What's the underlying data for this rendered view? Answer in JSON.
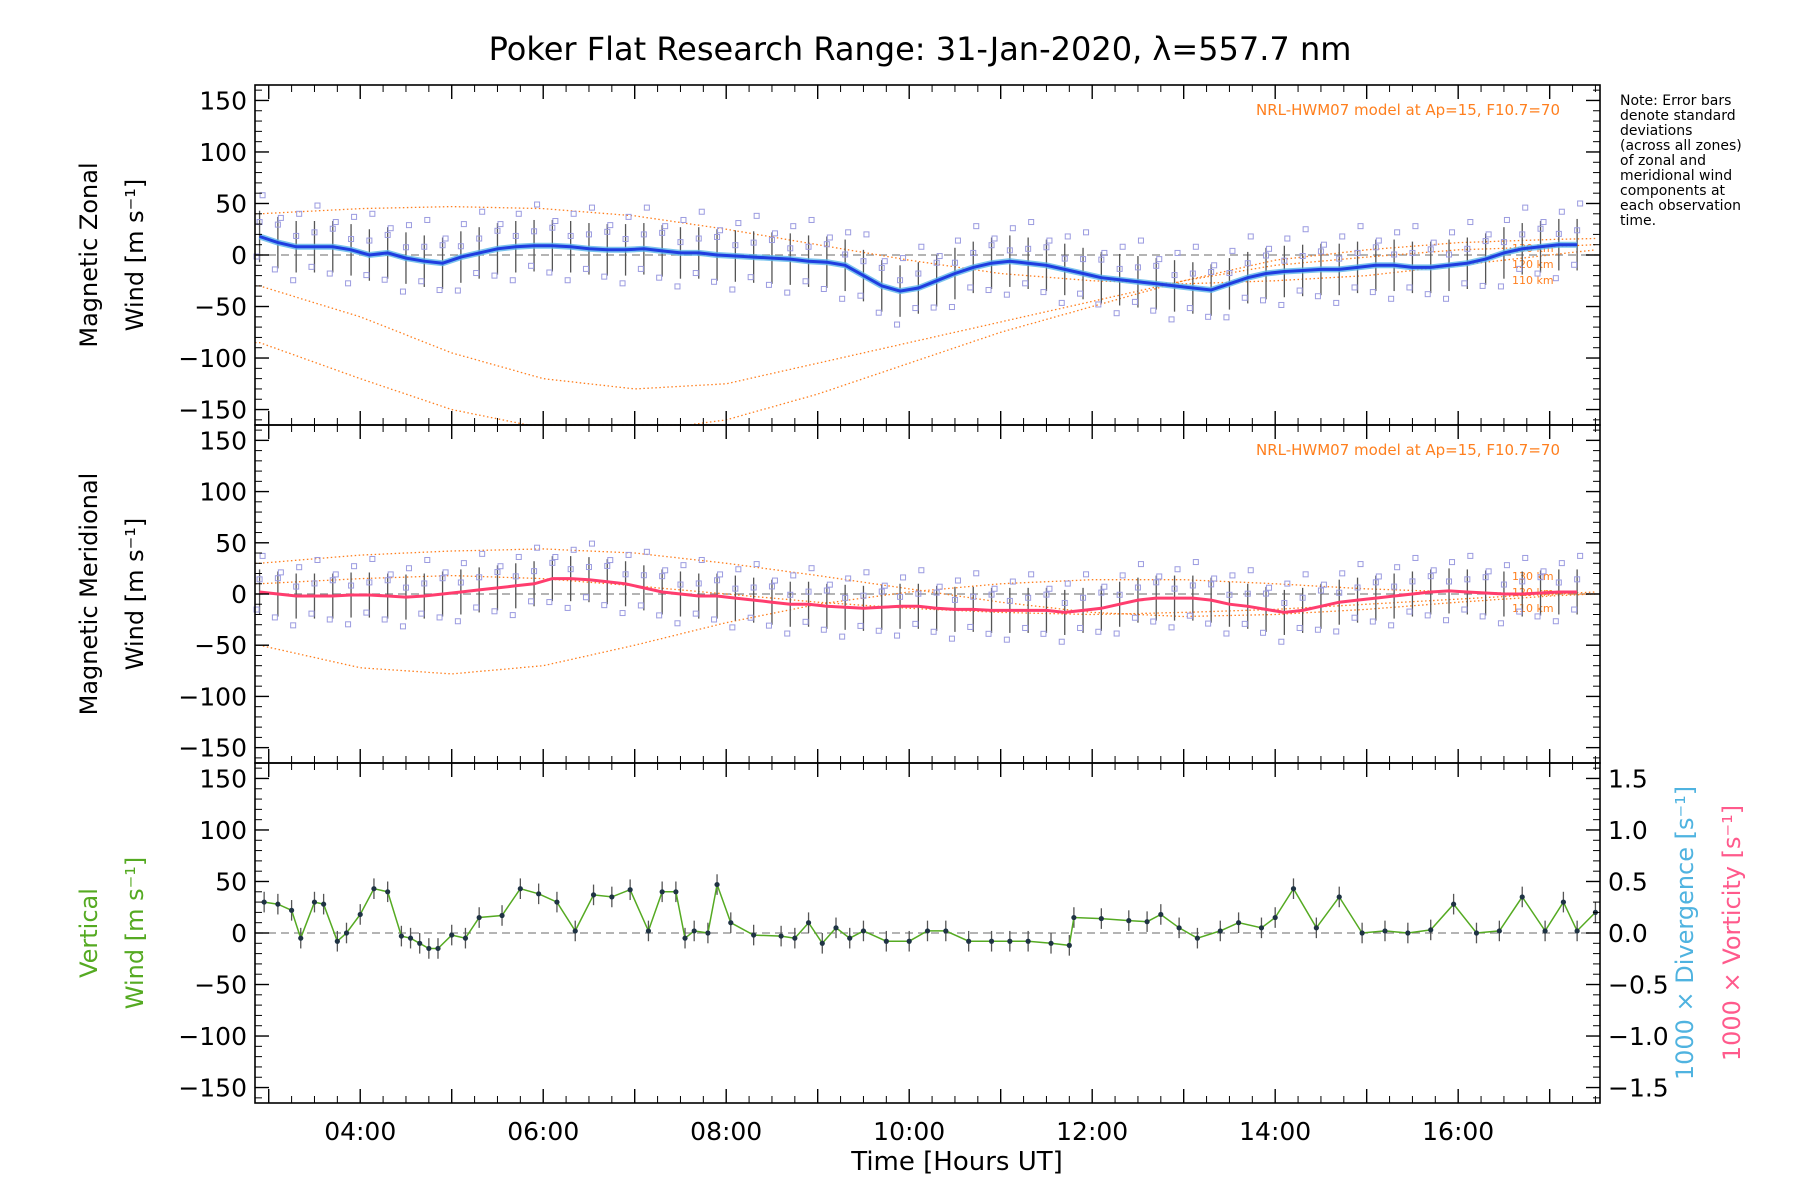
{
  "title": "Poker Flat Research Range: 31-Jan-2020, λ=557.7 nm",
  "note": [
    "Note: Error bars",
    "denote standard",
    "deviations",
    "(across all zones)",
    "of zonal and",
    "meridional wind",
    "components at",
    "each observation",
    "time."
  ],
  "xlabel": "Time [Hours UT]",
  "x_ticks": [
    "04:00",
    "06:00",
    "08:00",
    "10:00",
    "12:00",
    "14:00",
    "16:00"
  ],
  "model_label": "NRL-HWM07 model at Ap=15, F10.7=70",
  "model_alt_labels": [
    "130 km",
    "120 km",
    "110 km"
  ],
  "colors": {
    "zonal_line": "#1f3de0",
    "zonal_light": "#5ab4e8",
    "meridional_line": "#ff3d6e",
    "vertical_line": "#55aa22",
    "model": "#ff7f1e",
    "zone_points": "#9b9be0",
    "errorbar": "#555555",
    "divergence": "#4fb3e0",
    "vorticity": "#ff5a8c"
  },
  "chart_data": [
    {
      "type": "line",
      "name": "zonal",
      "ylabel_lines": [
        "Magnetic Zonal",
        "Wind [m s⁻¹]"
      ],
      "ylim": [
        -165,
        165
      ],
      "y_ticks": [
        "150",
        "100",
        "50",
        "0",
        "−50",
        "−100",
        "−150"
      ],
      "xlim": [
        2.85,
        17.55
      ],
      "x": [
        2.9,
        3.1,
        3.3,
        3.5,
        3.7,
        3.9,
        4.1,
        4.3,
        4.5,
        4.7,
        4.9,
        5.1,
        5.3,
        5.5,
        5.7,
        5.9,
        6.1,
        6.3,
        6.5,
        6.7,
        6.9,
        7.1,
        7.3,
        7.5,
        7.7,
        7.9,
        8.1,
        8.3,
        8.5,
        8.7,
        8.9,
        9.1,
        9.3,
        9.5,
        9.7,
        9.9,
        10.1,
        10.3,
        10.5,
        10.7,
        10.9,
        11.1,
        11.3,
        11.5,
        11.7,
        11.9,
        12.1,
        12.3,
        12.5,
        12.7,
        12.9,
        13.1,
        13.3,
        13.5,
        13.7,
        13.9,
        14.1,
        14.3,
        14.5,
        14.7,
        14.9,
        15.1,
        15.3,
        15.5,
        15.7,
        15.9,
        16.1,
        16.3,
        16.5,
        16.7,
        16.9,
        17.1,
        17.3
      ],
      "values": [
        18,
        12,
        8,
        8,
        8,
        5,
        0,
        2,
        -3,
        -6,
        -8,
        -2,
        2,
        6,
        8,
        9,
        9,
        8,
        6,
        5,
        5,
        6,
        4,
        2,
        2,
        0,
        -1,
        -2,
        -3,
        -4,
        -6,
        -7,
        -10,
        -20,
        -30,
        -35,
        -32,
        -25,
        -18,
        -12,
        -8,
        -6,
        -8,
        -10,
        -14,
        -18,
        -22,
        -24,
        -26,
        -28,
        -30,
        -32,
        -34,
        -28,
        -22,
        -18,
        -16,
        -15,
        -14,
        -14,
        -12,
        -10,
        -10,
        -12,
        -12,
        -10,
        -8,
        -4,
        2,
        6,
        8,
        10,
        10
      ],
      "error": 25,
      "model_curves": [
        {
          "alt": "130 km",
          "x": [
            2.9,
            4,
            5,
            6,
            7,
            8,
            9,
            10,
            11,
            12,
            13,
            14,
            15,
            16,
            17,
            17.5
          ],
          "values": [
            -85,
            -120,
            -150,
            -168,
            -172,
            -160,
            -135,
            -105,
            -75,
            -50,
            -25,
            -5,
            5,
            12,
            15,
            16
          ]
        },
        {
          "alt": "120 km",
          "x": [
            2.9,
            4,
            5,
            6,
            7,
            8,
            9,
            10,
            11,
            12,
            13,
            14,
            15,
            16,
            17,
            17.5
          ],
          "values": [
            -30,
            -60,
            -95,
            -120,
            -130,
            -125,
            -105,
            -85,
            -65,
            -45,
            -25,
            -10,
            -2,
            5,
            8,
            10
          ]
        },
        {
          "alt": "110 km",
          "x": [
            2.9,
            4,
            5,
            6,
            7,
            8,
            9,
            10,
            11,
            12,
            13,
            14,
            15,
            16,
            17,
            17.5
          ],
          "values": [
            40,
            45,
            47,
            45,
            38,
            25,
            10,
            -5,
            -18,
            -25,
            -28,
            -25,
            -20,
            -10,
            0,
            5
          ]
        }
      ]
    },
    {
      "type": "line",
      "name": "meridional",
      "ylabel_lines": [
        "Magnetic Meridional",
        "Wind [m s⁻¹]"
      ],
      "ylim": [
        -165,
        165
      ],
      "y_ticks": [
        "150",
        "100",
        "50",
        "0",
        "−50",
        "−100",
        "−150"
      ],
      "xlim": [
        2.85,
        17.55
      ],
      "x": [
        2.9,
        3.1,
        3.3,
        3.5,
        3.7,
        3.9,
        4.1,
        4.3,
        4.5,
        4.7,
        4.9,
        5.1,
        5.3,
        5.5,
        5.7,
        5.9,
        6.1,
        6.3,
        6.5,
        6.7,
        6.9,
        7.1,
        7.3,
        7.5,
        7.7,
        7.9,
        8.1,
        8.3,
        8.5,
        8.7,
        8.9,
        9.1,
        9.3,
        9.5,
        9.7,
        9.9,
        10.1,
        10.3,
        10.5,
        10.7,
        10.9,
        11.1,
        11.3,
        11.5,
        11.7,
        11.9,
        12.1,
        12.3,
        12.5,
        12.7,
        12.9,
        13.1,
        13.3,
        13.5,
        13.7,
        13.9,
        14.1,
        14.3,
        14.5,
        14.7,
        14.9,
        15.1,
        15.3,
        15.5,
        15.7,
        15.9,
        16.1,
        16.3,
        16.5,
        16.7,
        16.9,
        17.1,
        17.3
      ],
      "values": [
        2,
        0,
        -2,
        -2,
        -2,
        -1,
        -1,
        -2,
        -3,
        -2,
        0,
        2,
        4,
        6,
        8,
        10,
        15,
        15,
        14,
        12,
        10,
        6,
        2,
        0,
        -2,
        -2,
        -4,
        -6,
        -8,
        -10,
        -10,
        -12,
        -13,
        -14,
        -13,
        -12,
        -12,
        -14,
        -15,
        -15,
        -16,
        -16,
        -16,
        -16,
        -18,
        -16,
        -14,
        -10,
        -6,
        -4,
        -4,
        -4,
        -6,
        -10,
        -12,
        -15,
        -18,
        -16,
        -12,
        -8,
        -6,
        -4,
        -2,
        0,
        2,
        3,
        2,
        1,
        0,
        0,
        1,
        2,
        2
      ],
      "error": 22,
      "model_curves": [
        {
          "alt": "130 km",
          "x": [
            2.9,
            4,
            5,
            6,
            7,
            8,
            9,
            10,
            11,
            12,
            13,
            14,
            15,
            16,
            17,
            17.5
          ],
          "values": [
            -50,
            -72,
            -78,
            -70,
            -50,
            -28,
            -10,
            2,
            10,
            14,
            14,
            10,
            5,
            2,
            0,
            0
          ]
        },
        {
          "alt": "120 km",
          "x": [
            2.9,
            4,
            5,
            6,
            7,
            8,
            9,
            10,
            11,
            12,
            13,
            14,
            15,
            16,
            17,
            17.5
          ],
          "values": [
            10,
            15,
            18,
            15,
            8,
            0,
            -8,
            -14,
            -18,
            -20,
            -18,
            -15,
            -10,
            -5,
            0,
            2
          ]
        },
        {
          "alt": "110 km",
          "x": [
            2.9,
            4,
            5,
            6,
            7,
            8,
            9,
            10,
            11,
            12,
            13,
            14,
            15,
            16,
            17,
            17.5
          ],
          "values": [
            30,
            38,
            42,
            44,
            40,
            30,
            18,
            5,
            -8,
            -18,
            -22,
            -20,
            -15,
            -8,
            -2,
            0
          ]
        }
      ]
    },
    {
      "type": "line",
      "name": "vertical",
      "ylabel_lines": [
        "Vertical",
        "Wind [m s⁻¹]"
      ],
      "ylim": [
        -165,
        165
      ],
      "y_ticks": [
        "150",
        "100",
        "50",
        "0",
        "−50",
        "−100",
        "−150"
      ],
      "y2lim": [
        -1.65,
        1.65
      ],
      "y2_ticks": [
        "1.5",
        "1.0",
        "0.5",
        "0.0",
        "−0.5",
        "−1.0",
        "−1.5"
      ],
      "y2label_divergence": "1000 × Divergence [s⁻¹]",
      "y2label_vorticity": "1000 × Vorticity [s⁻¹]",
      "xlim": [
        2.85,
        17.55
      ],
      "x": [
        2.95,
        3.1,
        3.25,
        3.35,
        3.5,
        3.6,
        3.75,
        3.85,
        4.0,
        4.15,
        4.3,
        4.45,
        4.55,
        4.65,
        4.75,
        4.85,
        5.0,
        5.15,
        5.3,
        5.55,
        5.75,
        5.95,
        6.15,
        6.35,
        6.55,
        6.75,
        6.95,
        7.15,
        7.3,
        7.45,
        7.55,
        7.65,
        7.8,
        7.9,
        8.05,
        8.3,
        8.6,
        8.75,
        8.9,
        9.05,
        9.2,
        9.35,
        9.5,
        9.75,
        10.0,
        10.2,
        10.4,
        10.65,
        10.9,
        11.1,
        11.3,
        11.55,
        11.75,
        11.8,
        12.1,
        12.4,
        12.6,
        12.75,
        12.95,
        13.15,
        13.4,
        13.6,
        13.85,
        14.0,
        14.2,
        14.45,
        14.7,
        14.95,
        15.2,
        15.45,
        15.7,
        15.95,
        16.2,
        16.45,
        16.7,
        16.95,
        17.15,
        17.3,
        17.5
      ],
      "values": [
        30,
        28,
        22,
        -5,
        30,
        28,
        -8,
        0,
        18,
        43,
        40,
        -3,
        -5,
        -10,
        -15,
        -15,
        -2,
        -5,
        15,
        17,
        43,
        38,
        30,
        2,
        37,
        35,
        42,
        2,
        40,
        40,
        -5,
        2,
        0,
        47,
        10,
        -2,
        -3,
        -5,
        10,
        -10,
        5,
        -5,
        2,
        -8,
        -8,
        2,
        2,
        -8,
        -8,
        -8,
        -8,
        -10,
        -12,
        15,
        14,
        12,
        11,
        18,
        5,
        -5,
        2,
        10,
        5,
        15,
        43,
        5,
        35,
        0,
        2,
        0,
        3,
        28,
        0,
        2,
        35,
        2,
        30,
        2,
        20
      ],
      "error": 10
    }
  ]
}
